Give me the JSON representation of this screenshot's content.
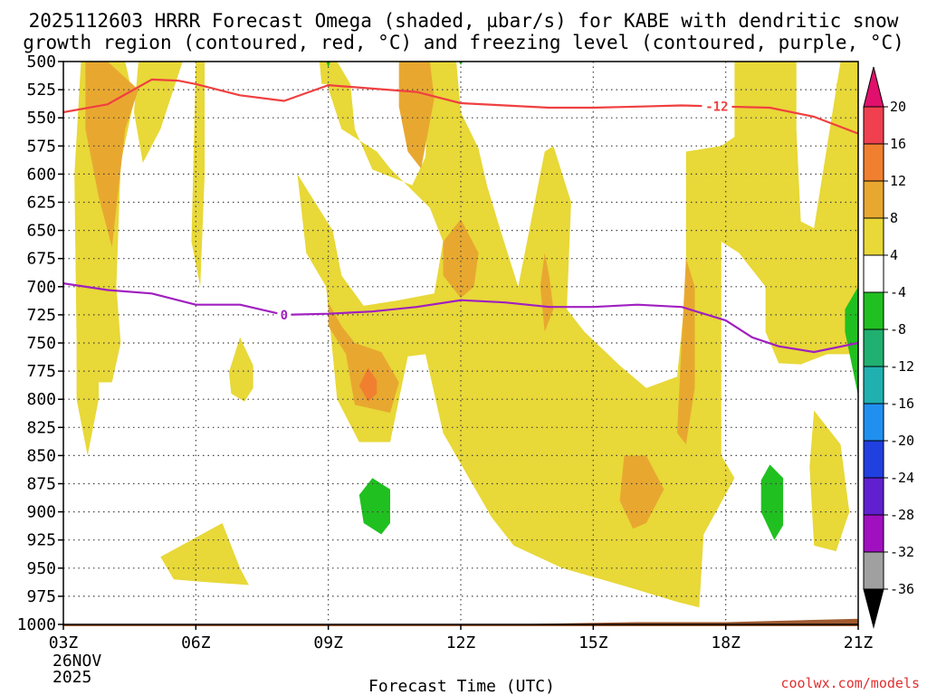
{
  "chart_data": {
    "type": "time-height contour",
    "title_line1": "2025112603 HRRR Forecast Omega (shaded, µbar/s) for KABE with dendritic snow",
    "title_line2": "growth region (contoured, red, °C) and freezing level (contoured, purple, °C)",
    "xlabel": "Forecast Time (UTC)",
    "ylabel": "",
    "date_label_line1": "26NOV",
    "date_label_line2": "2025",
    "credit": "coolwx.com/models",
    "x_range_hours": [
      3,
      21
    ],
    "y_range_hpa": [
      500,
      1000
    ],
    "y_ticks": [
      500,
      525,
      550,
      575,
      600,
      625,
      650,
      675,
      700,
      725,
      750,
      775,
      800,
      825,
      850,
      875,
      900,
      925,
      950,
      975,
      1000
    ],
    "y_tick_labels": [
      "500",
      "525",
      "550",
      "575",
      "600",
      "625",
      "650",
      "675",
      "700",
      "725",
      "750",
      "775",
      "800",
      "825",
      "850",
      "875",
      "900",
      "925",
      "950",
      "975",
      "1000"
    ],
    "x_ticks_hours": [
      3,
      6,
      9,
      12,
      15,
      18,
      21
    ],
    "x_tick_labels": [
      "03Z",
      "06Z",
      "09Z",
      "12Z",
      "15Z",
      "18Z",
      "21Z"
    ],
    "dendritic_line": {
      "label": "-12",
      "label_hour": 17.8,
      "color": "#f04040",
      "points": [
        [
          3,
          545
        ],
        [
          4,
          538
        ],
        [
          5,
          516
        ],
        [
          5.6,
          517
        ],
        [
          6,
          520
        ],
        [
          7,
          530
        ],
        [
          8,
          535
        ],
        [
          9,
          521
        ],
        [
          10,
          524
        ],
        [
          11,
          527
        ],
        [
          12,
          537
        ],
        [
          13,
          539
        ],
        [
          14,
          541
        ],
        [
          15,
          541
        ],
        [
          16,
          540
        ],
        [
          17,
          539
        ],
        [
          18,
          540
        ],
        [
          19,
          541
        ],
        [
          20,
          549
        ],
        [
          21,
          564
        ]
      ]
    },
    "freezing_line": {
      "label": "0",
      "label_hour": 8.0,
      "color": "#a020c0",
      "points": [
        [
          3,
          697
        ],
        [
          4,
          703
        ],
        [
          5,
          706
        ],
        [
          6,
          716
        ],
        [
          7,
          716
        ],
        [
          8,
          725
        ],
        [
          9,
          724
        ],
        [
          10,
          722
        ],
        [
          11,
          718
        ],
        [
          12,
          712
        ],
        [
          13,
          714
        ],
        [
          14,
          718
        ],
        [
          15,
          718
        ],
        [
          16,
          716
        ],
        [
          17,
          718
        ],
        [
          18,
          730
        ],
        [
          18.6,
          745
        ],
        [
          19.2,
          753
        ],
        [
          20,
          758
        ],
        [
          21,
          750
        ]
      ]
    },
    "omega_colorbar": {
      "tick_labels": [
        "20",
        "16",
        "12",
        "8",
        "4",
        "-4",
        "-8",
        "-12",
        "-16",
        "-20",
        "-24",
        "-28",
        "-32",
        "-36"
      ],
      "colors": [
        "#f04050",
        "#f08030",
        "#e8a830",
        "#e8d838",
        "#ffffff",
        "#20c020",
        "#20b070",
        "#20b0b0",
        "#2090f0",
        "#2040e0",
        "#6020d0",
        "#a010c0",
        "#a0a0a0"
      ],
      "top_arrow_color": "#e0106c",
      "bottom_arrow_color": "#000000"
    },
    "omega_regions": [
      {
        "level": "4 to 8",
        "color": "#e8d838",
        "points": [
          [
            3.4,
            500
          ],
          [
            4.4,
            500
          ],
          [
            4.6,
            535
          ],
          [
            4.3,
            590
          ],
          [
            4.2,
            700
          ],
          [
            4.3,
            750
          ],
          [
            4.1,
            785
          ],
          [
            3.8,
            785
          ],
          [
            3.8,
            800
          ],
          [
            3.55,
            850
          ],
          [
            3.3,
            800
          ],
          [
            3.3,
            750
          ],
          [
            3.25,
            600
          ]
        ]
      },
      {
        "level": "4 to 8",
        "color": "#e8d838",
        "points": [
          [
            4.7,
            500
          ],
          [
            5.7,
            500
          ],
          [
            5.2,
            560
          ],
          [
            4.8,
            590
          ],
          [
            4.6,
            545
          ]
        ]
      },
      {
        "level": "4 to 8",
        "color": "#e8d838",
        "points": [
          [
            8.8,
            500
          ],
          [
            9.2,
            500
          ],
          [
            9.5,
            520
          ],
          [
            9.6,
            560
          ],
          [
            10.0,
            596
          ],
          [
            10.9,
            610
          ],
          [
            11.2,
            585
          ],
          [
            11.3,
            500
          ],
          [
            11.9,
            500
          ],
          [
            12.0,
            545
          ],
          [
            12.4,
            577
          ],
          [
            12.6,
            611
          ],
          [
            12.9,
            650
          ],
          [
            13.3,
            700
          ],
          [
            13.9,
            580
          ],
          [
            14.1,
            575
          ],
          [
            14.5,
            625
          ],
          [
            14.4,
            720
          ],
          [
            14.8,
            740
          ],
          [
            15.6,
            770
          ],
          [
            16.2,
            790
          ],
          [
            16.9,
            780
          ],
          [
            17.1,
            700
          ],
          [
            17.1,
            580
          ],
          [
            17.9,
            575
          ],
          [
            18.2,
            567
          ],
          [
            18.2,
            500
          ],
          [
            19.6,
            500
          ],
          [
            19.6,
            560
          ],
          [
            19.7,
            642
          ],
          [
            20.0,
            648
          ],
          [
            20.6,
            500
          ],
          [
            21.0,
            500
          ],
          [
            21.0,
            760
          ],
          [
            20.3,
            760
          ],
          [
            19.7,
            769
          ],
          [
            19.2,
            768
          ],
          [
            18.9,
            740
          ],
          [
            18.9,
            700
          ],
          [
            18.3,
            670
          ],
          [
            17.9,
            660
          ],
          [
            17.9,
            770
          ],
          [
            17.9,
            850
          ],
          [
            18.2,
            870
          ],
          [
            17.5,
            920
          ],
          [
            17.4,
            985
          ],
          [
            16.9,
            980
          ],
          [
            15.8,
            967
          ],
          [
            14.3,
            950
          ],
          [
            13.2,
            930
          ],
          [
            12.7,
            905
          ],
          [
            11.6,
            830
          ],
          [
            11.2,
            760
          ],
          [
            10.8,
            762
          ],
          [
            10.4,
            838
          ],
          [
            9.7,
            838
          ],
          [
            9.2,
            800
          ],
          [
            8.95,
            700
          ],
          [
            8.5,
            670
          ],
          [
            8.3,
            600
          ],
          [
            9.1,
            650
          ],
          [
            9.3,
            690
          ],
          [
            9.8,
            717
          ],
          [
            10.6,
            712
          ],
          [
            11.4,
            706
          ],
          [
            11.6,
            660
          ],
          [
            11.3,
            630
          ],
          [
            10.4,
            595
          ],
          [
            10.1,
            580
          ],
          [
            9.3,
            560
          ]
        ]
      },
      {
        "level": "4 to 8",
        "color": "#e8d838",
        "points": [
          [
            7.0,
            745
          ],
          [
            7.3,
            770
          ],
          [
            7.3,
            790
          ],
          [
            7.1,
            802
          ],
          [
            6.8,
            795
          ],
          [
            6.75,
            776
          ]
        ]
      },
      {
        "level": "4 to 8",
        "color": "#e8d838",
        "points": [
          [
            6.0,
            500
          ],
          [
            6.2,
            500
          ],
          [
            6.2,
            600
          ],
          [
            6.1,
            700
          ],
          [
            5.9,
            660
          ]
        ]
      },
      {
        "level": "4 to 8",
        "color": "#e8d838",
        "points": [
          [
            5.2,
            940
          ],
          [
            6.6,
            910
          ],
          [
            7.0,
            950
          ],
          [
            7.2,
            965
          ],
          [
            6.1,
            962
          ],
          [
            5.5,
            960
          ]
        ]
      },
      {
        "level": "4 to 8",
        "color": "#e8d838",
        "points": [
          [
            8.8,
            500
          ],
          [
            8.9,
            500
          ],
          [
            9.0,
            520
          ],
          [
            8.85,
            520
          ]
        ]
      },
      {
        "level": "4 to 8",
        "color": "#e8d838",
        "points": [
          [
            20.0,
            810
          ],
          [
            20.6,
            840
          ],
          [
            20.8,
            900
          ],
          [
            20.5,
            935
          ],
          [
            20.0,
            930
          ],
          [
            19.9,
            860
          ]
        ]
      },
      {
        "level": "4 to 8",
        "color": "#e8d838",
        "points": [
          [
            21.0,
            500
          ],
          [
            21.0,
            580
          ],
          [
            20.6,
            550
          ],
          [
            20.5,
            520
          ]
        ]
      },
      {
        "level": "8 to 12",
        "color": "#e8a830",
        "points": [
          [
            3.5,
            500
          ],
          [
            4.0,
            500
          ],
          [
            4.7,
            525
          ],
          [
            4.4,
            560
          ],
          [
            4.1,
            665
          ],
          [
            3.8,
            620
          ],
          [
            3.5,
            560
          ]
        ]
      },
      {
        "level": "8 to 12",
        "color": "#e8a830",
        "points": [
          [
            10.6,
            500
          ],
          [
            11.3,
            500
          ],
          [
            11.4,
            533
          ],
          [
            11.1,
            595
          ],
          [
            10.8,
            580
          ],
          [
            10.6,
            540
          ]
        ]
      },
      {
        "level": "8 to 12",
        "color": "#e8a830",
        "points": [
          [
            9.0,
            714
          ],
          [
            9.3,
            735
          ],
          [
            9.6,
            750
          ],
          [
            10.2,
            758
          ],
          [
            10.6,
            785
          ],
          [
            10.4,
            812
          ],
          [
            9.6,
            805
          ],
          [
            9.4,
            760
          ],
          [
            9.0,
            735
          ]
        ]
      },
      {
        "level": "8 to 12",
        "color": "#e8a830",
        "points": [
          [
            12.0,
            640
          ],
          [
            12.4,
            670
          ],
          [
            12.3,
            700
          ],
          [
            12.0,
            710
          ],
          [
            11.6,
            690
          ],
          [
            11.6,
            660
          ]
        ]
      },
      {
        "level": "8 to 12",
        "color": "#e8a830",
        "points": [
          [
            13.9,
            670
          ],
          [
            14.0,
            690
          ],
          [
            14.1,
            720
          ],
          [
            13.9,
            740
          ],
          [
            13.8,
            700
          ]
        ]
      },
      {
        "level": "8 to 12",
        "color": "#e8a830",
        "points": [
          [
            15.7,
            850
          ],
          [
            16.2,
            850
          ],
          [
            16.6,
            880
          ],
          [
            16.2,
            910
          ],
          [
            15.9,
            915
          ],
          [
            15.6,
            890
          ]
        ]
      },
      {
        "level": "8 to 12",
        "color": "#e8a830",
        "points": [
          [
            17.1,
            675
          ],
          [
            17.3,
            700
          ],
          [
            17.3,
            790
          ],
          [
            17.1,
            840
          ],
          [
            16.9,
            830
          ],
          [
            17.0,
            750
          ]
        ]
      },
      {
        "level": "12 to 16",
        "color": "#f08030",
        "points": [
          [
            9.9,
            772
          ],
          [
            10.1,
            783
          ],
          [
            10.1,
            795
          ],
          [
            9.9,
            802
          ],
          [
            9.7,
            788
          ]
        ]
      },
      {
        "level": "-8 to -4",
        "color": "#20c020",
        "points": [
          [
            10.0,
            870
          ],
          [
            10.4,
            880
          ],
          [
            10.4,
            910
          ],
          [
            10.2,
            920
          ],
          [
            9.8,
            910
          ],
          [
            9.7,
            885
          ]
        ]
      },
      {
        "level": "-8 to -4",
        "color": "#20c020",
        "points": [
          [
            19.0,
            858
          ],
          [
            19.3,
            870
          ],
          [
            19.3,
            912
          ],
          [
            19.1,
            925
          ],
          [
            18.8,
            900
          ],
          [
            18.8,
            872
          ]
        ]
      },
      {
        "level": "-8 to -4",
        "color": "#20c020",
        "points": [
          [
            21.0,
            700
          ],
          [
            21.0,
            797
          ],
          [
            20.7,
            740
          ],
          [
            20.7,
            720
          ]
        ]
      },
      {
        "level": "-8 to -4",
        "color": "#20c020",
        "points": [
          [
            8.95,
            500
          ],
          [
            9.05,
            500
          ],
          [
            9.0,
            505
          ]
        ]
      },
      {
        "level": "-8 to -4",
        "color": "#20c020",
        "points": [
          [
            11.95,
            500
          ],
          [
            12.05,
            500
          ],
          [
            12.0,
            503
          ]
        ]
      }
    ],
    "terrain": {
      "color": "#a05a30",
      "points": [
        [
          3,
          1000
        ],
        [
          10,
          1000
        ],
        [
          13,
          1000
        ],
        [
          16,
          998
        ],
        [
          18,
          998
        ],
        [
          21,
          995
        ],
        [
          21,
          1010
        ],
        [
          3,
          1010
        ]
      ]
    }
  }
}
